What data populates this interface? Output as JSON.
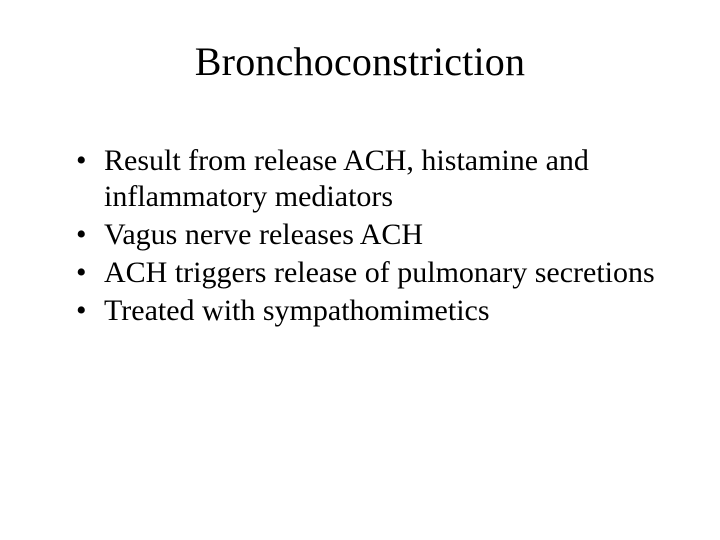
{
  "slide": {
    "title": "Bronchoconstriction",
    "bullets": [
      "Result from release ACH, histamine and inflammatory mediators",
      "Vagus nerve releases ACH",
      "ACH triggers release of pulmonary secretions",
      "Treated with sympathomimetics"
    ],
    "title_fontsize": 40,
    "body_fontsize": 30,
    "font_family": "Times New Roman",
    "text_color": "#000000",
    "background_color": "#ffffff"
  }
}
